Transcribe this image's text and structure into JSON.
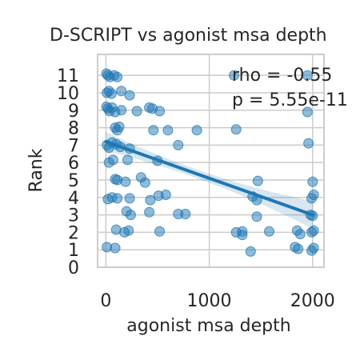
{
  "chart_data": {
    "type": "scatter",
    "title": "D-SCRIPT vs agonist msa depth",
    "xlabel": "agonist msa depth",
    "ylabel": "Rank",
    "xlim": [
      -80,
      2110
    ],
    "ylim": [
      0,
      12.2
    ],
    "xticks": [
      0,
      1000,
      2000
    ],
    "xtick_labels": [
      "0",
      "1000",
      "2000"
    ],
    "yticks": [
      0,
      1,
      2,
      3,
      4,
      5,
      6,
      7,
      8,
      9,
      10,
      11
    ],
    "ytick_labels": [
      "0",
      "1",
      "2",
      "3",
      "4",
      "5",
      "6",
      "7",
      "8",
      "9",
      "10",
      "11"
    ],
    "grid": true,
    "annotations": [
      "rho = -0.55",
      "p = 5.55e-11"
    ],
    "colors": {
      "points": "#1f77b4",
      "line": "#1f77b4",
      "band": "#1f77b4",
      "grid": "#cccccc"
    },
    "regression": {
      "x": [
        0,
        2000
      ],
      "y": [
        7.2,
        3.0
      ]
    },
    "points": [
      {
        "x": 5,
        "y": 11.1
      },
      {
        "x": 20,
        "y": 11.0
      },
      {
        "x": 40,
        "y": 10.9
      },
      {
        "x": 80,
        "y": 11.0
      },
      {
        "x": 110,
        "y": 10.9
      },
      {
        "x": 10,
        "y": 10.0
      },
      {
        "x": 30,
        "y": 10.1
      },
      {
        "x": 55,
        "y": 9.95
      },
      {
        "x": 150,
        "y": 10.1
      },
      {
        "x": 230,
        "y": 9.85
      },
      {
        "x": 5,
        "y": 9.2
      },
      {
        "x": 20,
        "y": 9.1
      },
      {
        "x": 35,
        "y": 8.95
      },
      {
        "x": 60,
        "y": 9.15
      },
      {
        "x": 90,
        "y": 8.9
      },
      {
        "x": 150,
        "y": 9.0
      },
      {
        "x": 300,
        "y": 8.95
      },
      {
        "x": 420,
        "y": 9.15
      },
      {
        "x": 450,
        "y": 9.1
      },
      {
        "x": 520,
        "y": 8.95
      },
      {
        "x": 90,
        "y": 8.0
      },
      {
        "x": 110,
        "y": 7.85
      },
      {
        "x": 130,
        "y": 8.05
      },
      {
        "x": 460,
        "y": 7.85
      },
      {
        "x": 600,
        "y": 7.85
      },
      {
        "x": 880,
        "y": 7.85
      },
      {
        "x": 1260,
        "y": 7.9
      },
      {
        "x": 10,
        "y": 7.0
      },
      {
        "x": 30,
        "y": 6.85
      },
      {
        "x": 60,
        "y": 7.15
      },
      {
        "x": 100,
        "y": 7.05
      },
      {
        "x": 140,
        "y": 6.9
      },
      {
        "x": 230,
        "y": 6.8
      },
      {
        "x": 700,
        "y": 7.0
      },
      {
        "x": 1960,
        "y": 7.1
      },
      {
        "x": 30,
        "y": 6.0
      },
      {
        "x": 70,
        "y": 6.15
      },
      {
        "x": 210,
        "y": 6.15
      },
      {
        "x": 500,
        "y": 6.1
      },
      {
        "x": 90,
        "y": 5.05
      },
      {
        "x": 110,
        "y": 5.0
      },
      {
        "x": 190,
        "y": 4.9
      },
      {
        "x": 340,
        "y": 5.15
      },
      {
        "x": 380,
        "y": 4.85
      },
      {
        "x": 1470,
        "y": 4.95
      },
      {
        "x": 2000,
        "y": 4.9
      },
      {
        "x": 20,
        "y": 3.9
      },
      {
        "x": 60,
        "y": 4.0
      },
      {
        "x": 110,
        "y": 3.95
      },
      {
        "x": 230,
        "y": 3.95
      },
      {
        "x": 430,
        "y": 3.85
      },
      {
        "x": 510,
        "y": 4.1
      },
      {
        "x": 580,
        "y": 4.15
      },
      {
        "x": 1420,
        "y": 4.05
      },
      {
        "x": 1460,
        "y": 3.85
      },
      {
        "x": 1990,
        "y": 3.95
      },
      {
        "x": 2010,
        "y": 4.15
      },
      {
        "x": 200,
        "y": 3.2
      },
      {
        "x": 240,
        "y": 3.0
      },
      {
        "x": 420,
        "y": 3.15
      },
      {
        "x": 700,
        "y": 3.05
      },
      {
        "x": 770,
        "y": 3.05
      },
      {
        "x": 1460,
        "y": 2.9
      },
      {
        "x": 1980,
        "y": 3.0
      },
      {
        "x": 2000,
        "y": 2.95
      },
      {
        "x": 100,
        "y": 2.15
      },
      {
        "x": 180,
        "y": 2.0
      },
      {
        "x": 220,
        "y": 2.1
      },
      {
        "x": 520,
        "y": 2.05
      },
      {
        "x": 1260,
        "y": 2.0
      },
      {
        "x": 1320,
        "y": 2.05
      },
      {
        "x": 1320,
        "y": 1.85
      },
      {
        "x": 1580,
        "y": 2.05
      },
      {
        "x": 1850,
        "y": 2.1
      },
      {
        "x": 1880,
        "y": 1.9
      },
      {
        "x": 1990,
        "y": 2.0
      },
      {
        "x": 2010,
        "y": 2.1
      },
      {
        "x": 10,
        "y": 1.15
      },
      {
        "x": 90,
        "y": 1.1
      },
      {
        "x": 1400,
        "y": 0.9
      },
      {
        "x": 1830,
        "y": 1.15
      },
      {
        "x": 1860,
        "y": 1.05
      },
      {
        "x": 1990,
        "y": 0.95
      },
      {
        "x": 2010,
        "y": 1.1
      },
      {
        "x": 1950,
        "y": 11.0
      },
      {
        "x": 1240,
        "y": 11.0
      },
      {
        "x": 1950,
        "y": 8.9
      }
    ]
  }
}
